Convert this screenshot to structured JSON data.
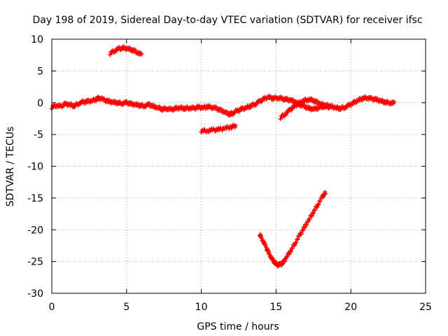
{
  "chart_data": {
    "type": "scatter",
    "title": "Day 198 of 2019, Sidereal Day-to-day VTEC variation (SDTVAR) for receiver ifsc",
    "xlabel": "GPS time / hours",
    "ylabel": "SDTVAR / TECUs",
    "xlim": [
      0,
      25
    ],
    "ylim": [
      -30,
      10
    ],
    "xticks": [
      "0",
      "5",
      "10",
      "15",
      "20",
      "25"
    ],
    "yticks": [
      "10",
      "5",
      "0",
      "-5",
      "-10",
      "-15",
      "-20",
      "-25",
      "-30"
    ],
    "grid": true,
    "marker": "+",
    "series_color": "#ff0000",
    "series": [
      {
        "name": "main band",
        "points": [
          [
            0.0,
            -0.7
          ],
          [
            0.3,
            -0.4
          ],
          [
            0.6,
            -0.6
          ],
          [
            0.9,
            -0.2
          ],
          [
            1.2,
            -0.3
          ],
          [
            1.5,
            -0.5
          ],
          [
            1.8,
            -0.1
          ],
          [
            2.1,
            0.1
          ],
          [
            2.4,
            0.2
          ],
          [
            2.7,
            0.3
          ],
          [
            3.0,
            0.6
          ],
          [
            3.2,
            0.8
          ],
          [
            3.5,
            0.4
          ],
          [
            3.8,
            0.2
          ],
          [
            4.1,
            0.1
          ],
          [
            4.4,
            0.0
          ],
          [
            4.7,
            -0.1
          ],
          [
            5.0,
            0.0
          ],
          [
            5.3,
            -0.2
          ],
          [
            5.6,
            -0.3
          ],
          [
            5.9,
            -0.4
          ],
          [
            6.2,
            -0.5
          ],
          [
            6.5,
            -0.3
          ],
          [
            6.8,
            -0.6
          ],
          [
            7.1,
            -0.8
          ],
          [
            7.4,
            -1.0
          ],
          [
            7.7,
            -0.9
          ],
          [
            8.0,
            -1.1
          ],
          [
            8.3,
            -0.9
          ],
          [
            8.6,
            -0.8
          ],
          [
            8.9,
            -0.9
          ],
          [
            9.2,
            -0.8
          ],
          [
            9.5,
            -0.9
          ],
          [
            9.8,
            -0.7
          ],
          [
            10.1,
            -0.8
          ],
          [
            10.4,
            -0.6
          ],
          [
            10.7,
            -0.7
          ],
          [
            11.0,
            -0.9
          ],
          [
            11.3,
            -1.2
          ],
          [
            11.6,
            -1.5
          ],
          [
            11.9,
            -1.8
          ],
          [
            12.1,
            -1.6
          ],
          [
            12.4,
            -1.3
          ],
          [
            12.7,
            -1.0
          ],
          [
            13.0,
            -0.8
          ],
          [
            13.3,
            -0.5
          ],
          [
            13.6,
            -0.2
          ],
          [
            13.9,
            0.2
          ],
          [
            14.2,
            0.6
          ],
          [
            14.5,
            0.9
          ],
          [
            14.8,
            0.7
          ],
          [
            15.1,
            0.8
          ],
          [
            15.4,
            0.6
          ],
          [
            15.7,
            0.5
          ],
          [
            16.0,
            0.4
          ],
          [
            16.3,
            0.1
          ],
          [
            16.6,
            -0.3
          ],
          [
            16.9,
            -0.6
          ],
          [
            17.2,
            -0.9
          ],
          [
            17.5,
            -1.0
          ],
          [
            17.8,
            -0.8
          ],
          [
            18.1,
            -0.6
          ],
          [
            18.4,
            -0.7
          ],
          [
            18.7,
            -0.6
          ],
          [
            19.0,
            -0.8
          ],
          [
            19.3,
            -0.9
          ],
          [
            19.6,
            -0.7
          ],
          [
            19.9,
            -0.4
          ],
          [
            20.2,
            0.0
          ],
          [
            20.5,
            0.4
          ],
          [
            20.8,
            0.7
          ],
          [
            21.1,
            0.8
          ],
          [
            21.4,
            0.6
          ],
          [
            21.7,
            0.5
          ],
          [
            22.0,
            0.3
          ],
          [
            22.3,
            0.1
          ],
          [
            22.6,
            0.0
          ],
          [
            22.9,
            -0.1
          ]
        ]
      },
      {
        "name": "crossing arc",
        "points": [
          [
            15.3,
            -2.3
          ],
          [
            15.6,
            -1.8
          ],
          [
            15.9,
            -1.2
          ],
          [
            16.2,
            -0.6
          ],
          [
            16.5,
            -0.1
          ],
          [
            16.8,
            0.3
          ],
          [
            17.1,
            0.5
          ],
          [
            17.4,
            0.4
          ],
          [
            17.7,
            0.1
          ],
          [
            18.0,
            -0.2
          ],
          [
            18.3,
            -0.4
          ],
          [
            18.6,
            -0.5
          ]
        ]
      },
      {
        "name": "arc near 5 h",
        "points": [
          [
            3.9,
            7.8
          ],
          [
            4.2,
            8.2
          ],
          [
            4.5,
            8.5
          ],
          [
            4.8,
            8.6
          ],
          [
            5.1,
            8.5
          ],
          [
            5.4,
            8.3
          ],
          [
            5.7,
            8.0
          ],
          [
            6.0,
            7.5
          ]
        ]
      },
      {
        "name": "segment near 11 h",
        "points": [
          [
            10.0,
            -4.4
          ],
          [
            10.4,
            -4.4
          ],
          [
            10.8,
            -4.3
          ],
          [
            11.2,
            -4.2
          ],
          [
            11.6,
            -4.0
          ],
          [
            12.0,
            -3.8
          ],
          [
            12.3,
            -3.6
          ]
        ]
      },
      {
        "name": "V curve",
        "points": [
          [
            13.9,
            -20.7
          ],
          [
            14.1,
            -21.6
          ],
          [
            14.3,
            -22.6
          ],
          [
            14.5,
            -23.6
          ],
          [
            14.7,
            -24.5
          ],
          [
            14.9,
            -25.1
          ],
          [
            15.1,
            -25.5
          ],
          [
            15.3,
            -25.5
          ],
          [
            15.5,
            -25.1
          ],
          [
            15.7,
            -24.3
          ],
          [
            16.0,
            -23.2
          ],
          [
            16.3,
            -22.0
          ],
          [
            16.6,
            -20.8
          ],
          [
            16.9,
            -19.6
          ],
          [
            17.2,
            -18.4
          ],
          [
            17.5,
            -17.2
          ],
          [
            17.8,
            -16.0
          ],
          [
            18.1,
            -14.8
          ],
          [
            18.3,
            -14.2
          ]
        ]
      }
    ]
  }
}
